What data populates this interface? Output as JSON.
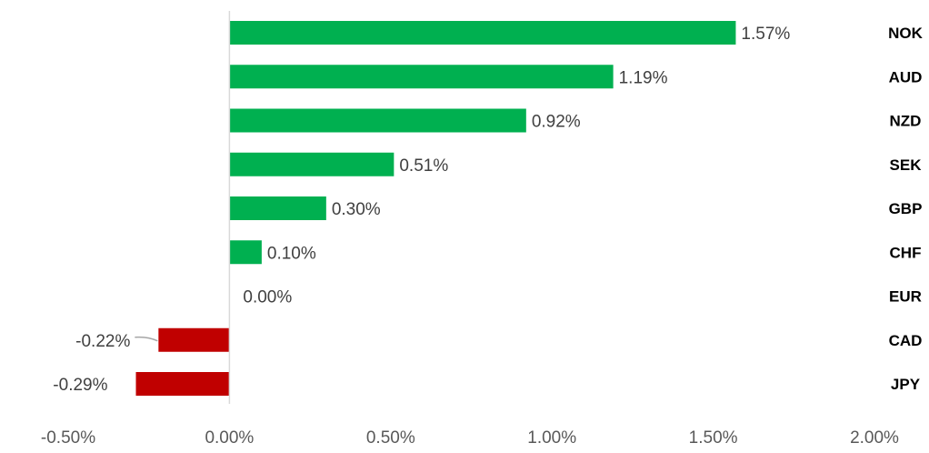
{
  "chart_data": {
    "type": "bar",
    "orientation": "horizontal",
    "categories": [
      "NOK",
      "AUD",
      "NZD",
      "SEK",
      "GBP",
      "CHF",
      "EUR",
      "CAD",
      "JPY"
    ],
    "values": [
      1.57,
      1.19,
      0.92,
      0.51,
      0.3,
      0.1,
      0.0,
      -0.22,
      -0.29
    ],
    "data_labels": [
      "1.57%",
      "1.19%",
      "0.92%",
      "0.51%",
      "0.30%",
      "0.10%",
      "0.00%",
      "-0.22%",
      "-0.29%"
    ],
    "xlim": [
      -0.5,
      2.0
    ],
    "x_ticks": [
      -0.5,
      0.0,
      0.5,
      1.0,
      1.5,
      2.0
    ],
    "x_tick_labels": [
      "-0.50%",
      "0.00%",
      "0.50%",
      "1.00%",
      "1.50%",
      "2.00%"
    ],
    "title": "",
    "xlabel": "",
    "ylabel": "",
    "grid": false,
    "legend": "none",
    "category_label_position": "right",
    "colors": {
      "positive": "#00B050",
      "negative": "#C00000",
      "axis": "#D9D9D9",
      "tick_text": "#595959",
      "label_text": "#404040",
      "category_text": "#000000"
    }
  }
}
